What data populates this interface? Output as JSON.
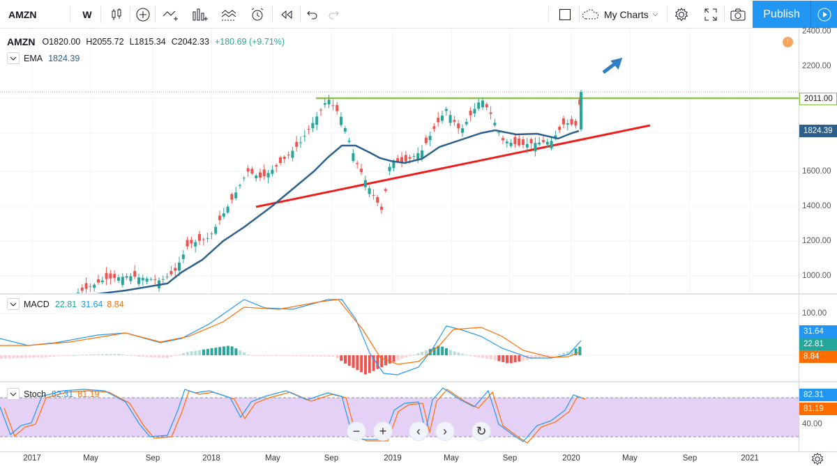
{
  "toolbar": {
    "symbol": "AMZN",
    "interval": "W",
    "layout_name": "My Charts",
    "publish_label": "Publish",
    "icons": [
      "candles-icon",
      "add-indicator-icon",
      "compare-icon",
      "bars-icon",
      "chart-template-icon",
      "alert-icon",
      "replay-icon",
      "undo-icon",
      "redo-icon",
      "fullscreen-icon",
      "camera-icon",
      "settings-icon",
      "cloud-icon"
    ]
  },
  "main": {
    "legend": {
      "symbol": "AMZN",
      "open": "O1820.00",
      "high": "H2055.72",
      "low": "L1815.34",
      "close": "C2042.33",
      "change": "+180.69 (+9.71%)"
    },
    "ema_legend": {
      "name": "EMA",
      "value": "1824.39"
    },
    "price_axis": [
      "2400.00",
      "2200.00",
      "1600.00",
      "1400.00",
      "1200.00",
      "1000.00"
    ],
    "price_badges": {
      "resistance": "2011.00",
      "ema": "1824.39"
    },
    "colors": {
      "up": "#26a69a",
      "down": "#ef5350",
      "ema": "#2c5f8a",
      "support": "#ef1c1c",
      "resistance": "#8bc34a",
      "arrow": "#2f7ec4"
    }
  },
  "macd": {
    "legend": {
      "name": "MACD",
      "hist": "22.81",
      "macd": "31.64",
      "signal": "8.84"
    },
    "axis": [
      "100.00"
    ],
    "badges": [
      "31.64",
      "22.81",
      "8.84"
    ]
  },
  "stoch": {
    "legend": {
      "name": "Stoch",
      "k": "82.31",
      "d": "81.19"
    },
    "axis": [
      "40.00"
    ],
    "badges": [
      "82.31",
      "81.19"
    ]
  },
  "time_axis": [
    "2017",
    "May",
    "Sep",
    "2018",
    "May",
    "Sep",
    "2019",
    "May",
    "Sep",
    "2020",
    "May",
    "Sep",
    "2021"
  ],
  "nav": {
    "zoom_out": "−",
    "zoom_in": "+",
    "back": "‹",
    "forward": "›",
    "reset": "↻"
  }
}
